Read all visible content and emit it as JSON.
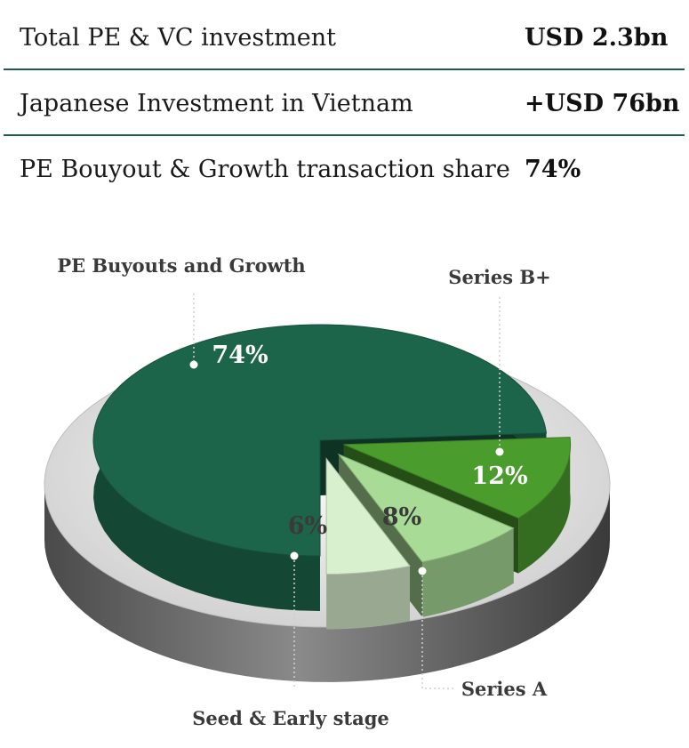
{
  "stats": [
    {
      "label": "Total PE & VC investment",
      "value": "USD 2.3bn"
    },
    {
      "label": "Japanese Investment in Vietnam",
      "value": "+USD 76bn"
    },
    {
      "label": "PE Bouyout & Growth transaction share",
      "value": "74%"
    }
  ],
  "chart_data": {
    "type": "pie",
    "categories": [
      "PE Buyouts and Growth",
      "Series B+",
      "Series A",
      "Seed & Early stage"
    ],
    "values": [
      74,
      12,
      8,
      6
    ],
    "data_labels": [
      "74%",
      "12%",
      "8%",
      "6%"
    ],
    "colors": [
      "#1c654a",
      "#4a9c2d",
      "#a8dc96",
      "#d9f0cf"
    ],
    "legend": "none"
  }
}
